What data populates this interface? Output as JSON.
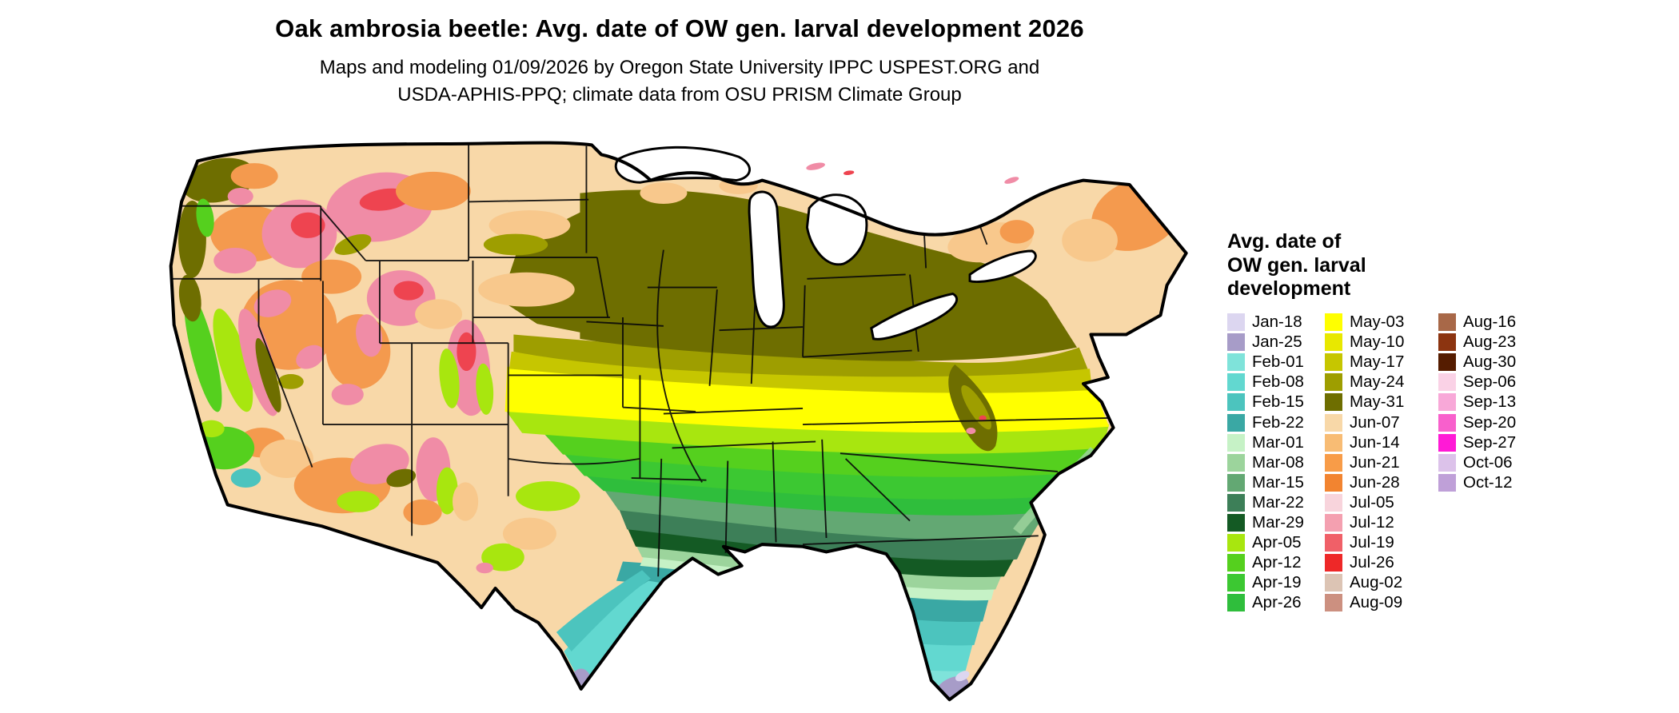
{
  "title": "Oak ambrosia beetle: Avg. date of OW gen. larval development 2026",
  "subtitle_line1": "Maps and modeling 01/09/2026 by Oregon State University IPPC USPEST.ORG and",
  "subtitle_line2": "USDA-APHIS-PPQ; climate data from OSU PRISM Climate Group",
  "legend": {
    "title": "Avg. date of\nOW gen. larval\ndevelopment",
    "columns": [
      [
        {
          "label": "Jan-18",
          "color": "#dcd6f0"
        },
        {
          "label": "Jan-25",
          "color": "#a79cc8"
        },
        {
          "label": "Feb-01",
          "color": "#7fe3da"
        },
        {
          "label": "Feb-08",
          "color": "#62d8d0"
        },
        {
          "label": "Feb-15",
          "color": "#4cc4be"
        },
        {
          "label": "Feb-22",
          "color": "#3aa8a4"
        },
        {
          "label": "Mar-01",
          "color": "#c6f2c6"
        },
        {
          "label": "Mar-08",
          "color": "#9cd49c"
        },
        {
          "label": "Mar-15",
          "color": "#63a873"
        },
        {
          "label": "Mar-22",
          "color": "#3d7f58"
        },
        {
          "label": "Mar-29",
          "color": "#145a24"
        },
        {
          "label": "Apr-05",
          "color": "#a8e60f"
        },
        {
          "label": "Apr-12",
          "color": "#55d01e"
        },
        {
          "label": "Apr-19",
          "color": "#3cc832"
        },
        {
          "label": "Apr-26",
          "color": "#2fbe3c"
        }
      ],
      [
        {
          "label": "May-03",
          "color": "#ffff00"
        },
        {
          "label": "May-10",
          "color": "#e8e800"
        },
        {
          "label": "May-17",
          "color": "#c6c600"
        },
        {
          "label": "May-24",
          "color": "#9e9e00"
        },
        {
          "label": "May-31",
          "color": "#6e6e00"
        },
        {
          "label": "Jun-07",
          "color": "#f8d8a8"
        },
        {
          "label": "Jun-14",
          "color": "#f8bc74"
        },
        {
          "label": "Jun-21",
          "color": "#f89c48"
        },
        {
          "label": "Jun-28",
          "color": "#f28430"
        },
        {
          "label": "Jul-05",
          "color": "#f8d4dc"
        },
        {
          "label": "Jul-12",
          "color": "#f4a0b0"
        },
        {
          "label": "Jul-19",
          "color": "#f06068"
        },
        {
          "label": "Jul-26",
          "color": "#ee2828"
        },
        {
          "label": "Aug-02",
          "color": "#dcc4b4"
        },
        {
          "label": "Aug-09",
          "color": "#cc9080"
        }
      ],
      [
        {
          "label": "Aug-16",
          "color": "#a86848"
        },
        {
          "label": "Aug-23",
          "color": "#8c3410"
        },
        {
          "label": "Aug-30",
          "color": "#551c00"
        },
        {
          "label": "Sep-06",
          "color": "#fad2e6"
        },
        {
          "label": "Sep-13",
          "color": "#f8a8d8"
        },
        {
          "label": "Sep-20",
          "color": "#f860cc"
        },
        {
          "label": "Sep-27",
          "color": "#ff1ad6"
        },
        {
          "label": "Oct-06",
          "color": "#dcc2ea"
        },
        {
          "label": "Oct-12",
          "color": "#bfa0d8"
        }
      ]
    ]
  },
  "map": {
    "region": "Contiguous United States",
    "palette": {
      "base_tan": "#f8d8a8",
      "west_peach": "#f8c88c",
      "west_orange": "#f49a4e",
      "mountain_pink": "#f08ca6",
      "mountain_red": "#ee4450",
      "olive_dark": "#6e6e00",
      "olive": "#9e9e00",
      "olive_yellow": "#c6c600",
      "yellow": "#ffff00",
      "yellow_green": "#a8e60f",
      "green_bright": "#55d01e",
      "green_mid": "#3cc832",
      "green_mid2": "#2fbe3c",
      "green_sage": "#9cd49c",
      "pale_green": "#c6f2c6",
      "green_medium": "#63a873",
      "green_dark": "#3d7f58",
      "green_deep": "#145a24",
      "teal_deep": "#3aa8a4",
      "teal": "#4cc4be",
      "aqua": "#62d8d0",
      "aqua_light": "#7fe3da",
      "lavender": "#a79cc8",
      "lavender_light": "#dcd6f0",
      "lake_white": "#ffffff",
      "outline_black": "#000000"
    }
  }
}
